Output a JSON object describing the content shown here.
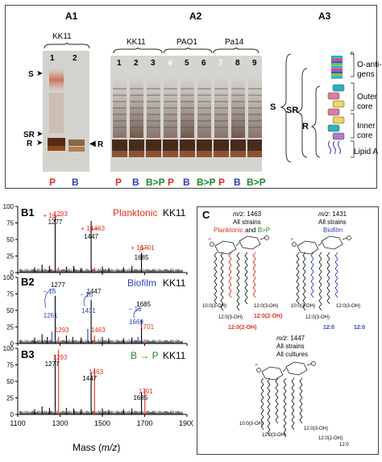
{
  "panelA": {
    "a1": {
      "title": "A1",
      "strain": "KK11",
      "lanes": [
        "1",
        "2"
      ],
      "conds": [
        {
          "t": "P",
          "c": "red"
        },
        {
          "t": "B",
          "c": "blue"
        }
      ],
      "marks": {
        "s": "S",
        "sr": "SR",
        "r": "R",
        "r_right": "R"
      }
    },
    "a2": {
      "title": "A2",
      "groups": [
        "KK11",
        "PAO1",
        "Pa14"
      ],
      "lanes": [
        "1",
        "2",
        "3",
        "4",
        "5",
        "6",
        "7",
        "8",
        "9"
      ],
      "conds": [
        {
          "t": "P",
          "c": "red"
        },
        {
          "t": "B",
          "c": "blue"
        },
        {
          "t": "B>P",
          "c": "green"
        },
        {
          "t": "P",
          "c": "red"
        },
        {
          "t": "B",
          "c": "blue"
        },
        {
          "t": "B>P",
          "c": "green"
        },
        {
          "t": "P",
          "c": "red"
        },
        {
          "t": "B",
          "c": "blue"
        },
        {
          "t": "B>P",
          "c": "green"
        }
      ]
    },
    "a3": {
      "title": "A3",
      "s": "S",
      "sr": "SR",
      "r": "R",
      "n": "n",
      "parts": [
        "O-anti-",
        "gens",
        "Outer",
        "core",
        "Inner",
        "core",
        "Lipid A"
      ]
    }
  },
  "panelB": {
    "xlabel_pre": "Mass (",
    "xlabel_mz": "m/z",
    "xlabel_post": ")",
    "xticks": [
      "1100",
      "1300",
      "1500",
      "1700",
      "1900"
    ],
    "yticks": [
      "0",
      "25",
      "50",
      "75",
      "100"
    ],
    "b1": {
      "label": "B1",
      "cond": "Planktonic",
      "strain": "KK11",
      "ann": {
        "p1": "+ 16",
        "v1": "1293",
        "p2": "+ 16",
        "v2": "1463",
        "p3": "+ 16",
        "v3": "1701"
      },
      "peaks": {
        "a": "1277",
        "b": "1447",
        "c": "1685"
      }
    },
    "b2": {
      "label": "B2",
      "cond": "Biofilm",
      "strain": "KK11",
      "ann": {
        "m1": "− 16",
        "v1": "1261",
        "m2": "− 16",
        "v2": "1431",
        "m3": "− 16",
        "v3": "1669"
      },
      "peaks": {
        "a": "1277",
        "b": "1447",
        "c": "1685",
        "d": "1293",
        "e": "1463",
        "f": "1701"
      }
    },
    "b3": {
      "label": "B3",
      "cond": "B → P",
      "strain": "KK11",
      "peaks": {
        "a": "1293",
        "b": "1277",
        "c": "1463",
        "d": "1447",
        "e": "1701",
        "f": "1685"
      }
    }
  },
  "panelC": {
    "label": "C",
    "s1": {
      "mz_i": "m/z",
      "mz_v": ": 1463",
      "l1": "All strains",
      "l2a": "Planktonic",
      "l2b": " and ",
      "l2c": "B>P",
      "chains": [
        "10:0(3-OH)",
        "12:0(3-OH)",
        "12:0(3-OH)",
        "12:0(2-OH)",
        "12:0(2-OH)"
      ]
    },
    "s2": {
      "mz_i": "m/z",
      "mz_v": ": 1431",
      "l1": "All strains",
      "l2": "Biofilm",
      "chains": [
        "10:0(3-OH)",
        "12:0(3-OH)",
        "12:0(3-OH)",
        "12:0",
        "12:0"
      ]
    },
    "s3": {
      "mz_i": "m/z",
      "mz_v": ": 1447",
      "l1": "All strains",
      "l2": "All cultures",
      "chains": [
        "10:0(3-OH)",
        "12:0(3-OH)",
        "12:0(3-OH)",
        "12:0(2-OH)",
        "12:0"
      ]
    }
  },
  "colors": {
    "red": "#e0301e",
    "blue": "#2a3fbf",
    "green": "#1e8a2e"
  }
}
